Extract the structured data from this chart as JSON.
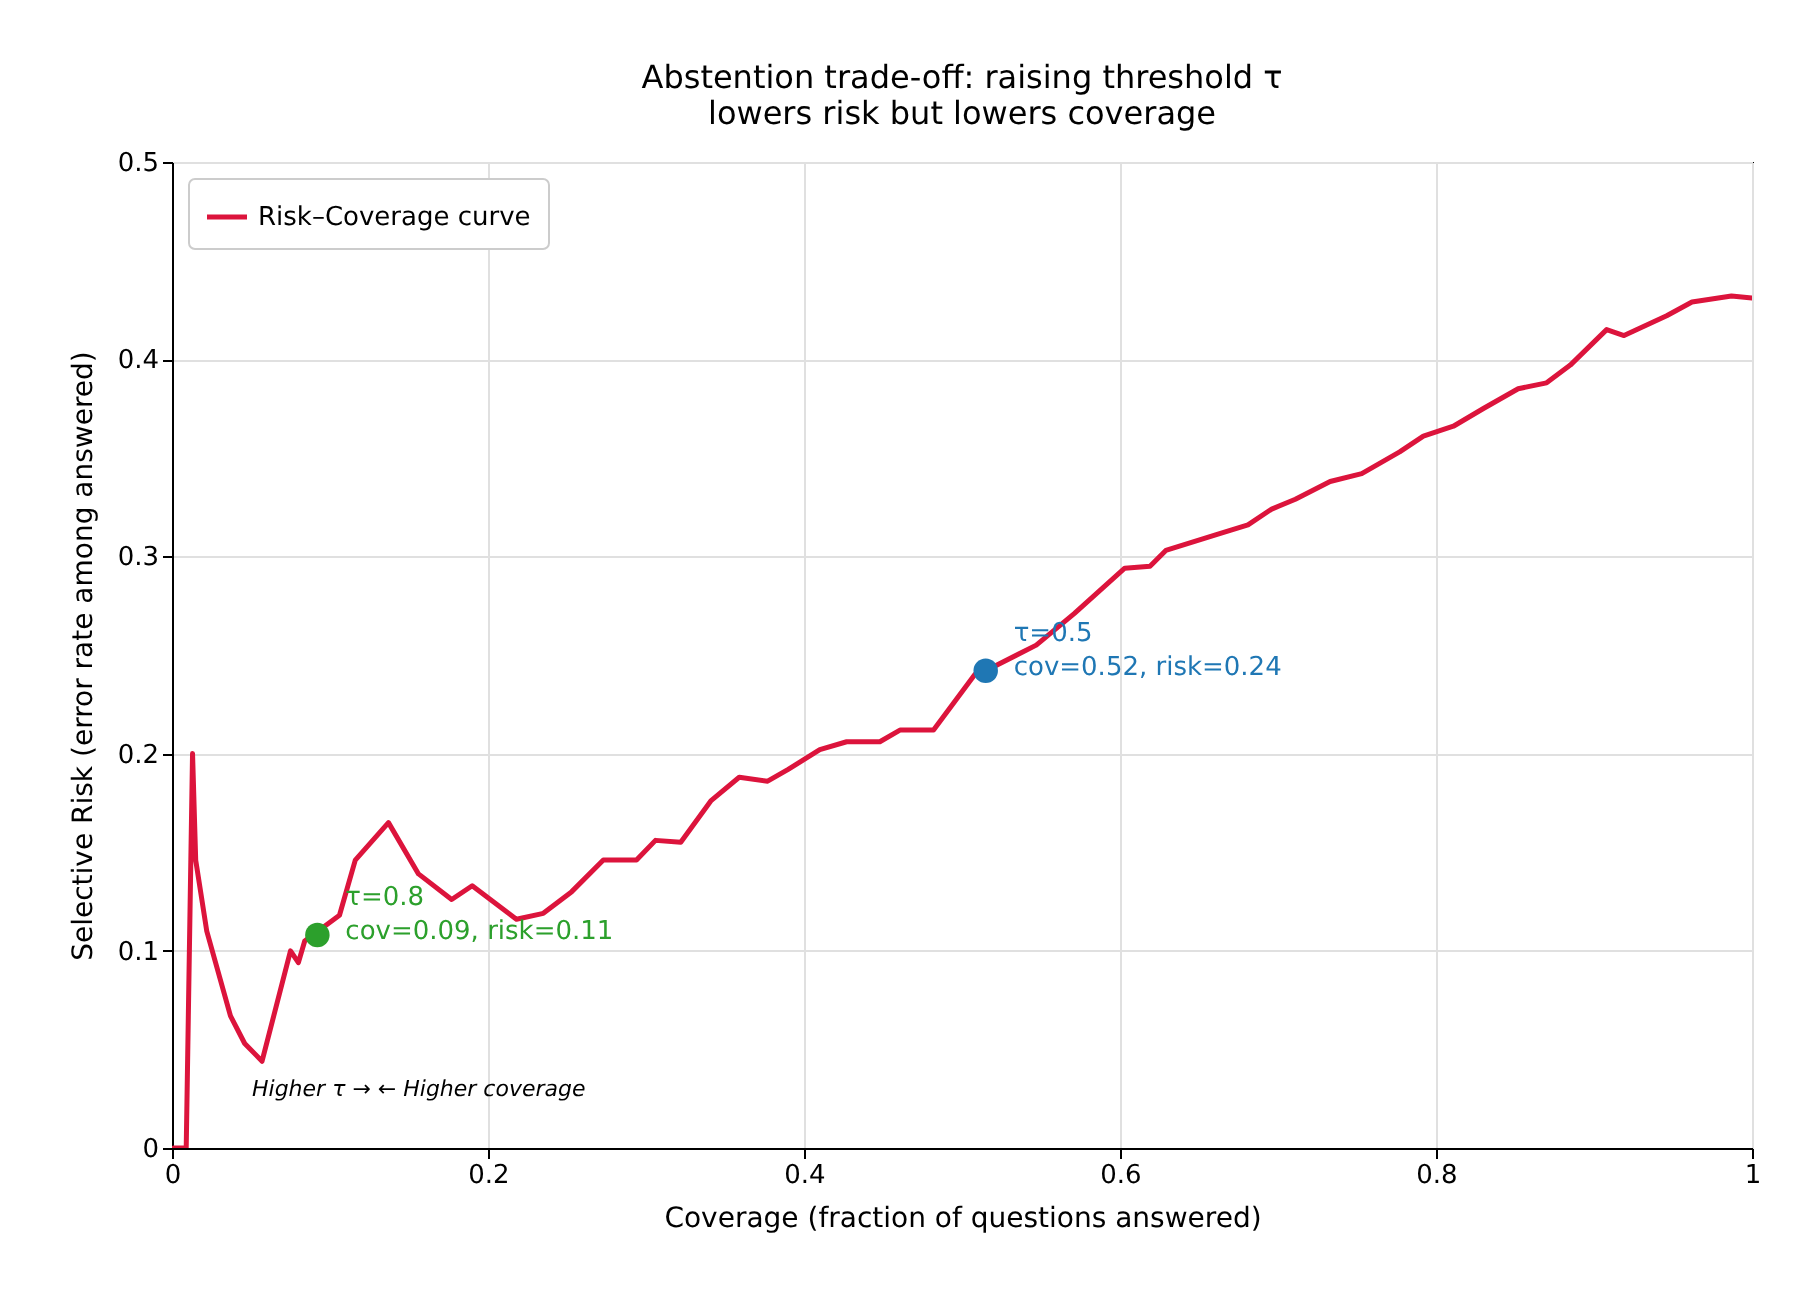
{
  "chart_data": {
    "type": "line",
    "title": "Abstention trade-off: raising threshold τ\nlowers risk but lowers coverage",
    "xlabel": "Coverage  (fraction of questions answered)",
    "ylabel": "Selective Risk  (error rate among answered)",
    "xlim": [
      0,
      1
    ],
    "ylim": [
      0,
      0.5
    ],
    "xticks": [
      0,
      0.2,
      0.4,
      0.6,
      0.8,
      1
    ],
    "yticks": [
      0,
      0.1,
      0.2,
      0.3,
      0.4,
      0.5
    ],
    "grid": true,
    "legend": "top left",
    "series": [
      {
        "name": "Risk–Coverage curve",
        "color": "#dc143c",
        "x": [
          0.001,
          0.009,
          0.013,
          0.015,
          0.022,
          0.037,
          0.046,
          0.057,
          0.075,
          0.08,
          0.084,
          0.106,
          0.116,
          0.137,
          0.156,
          0.177,
          0.19,
          0.218,
          0.235,
          0.253,
          0.273,
          0.294,
          0.306,
          0.322,
          0.341,
          0.359,
          0.377,
          0.39,
          0.41,
          0.427,
          0.448,
          0.461,
          0.482,
          0.508,
          0.515,
          0.547,
          0.571,
          0.603,
          0.619,
          0.629,
          0.661,
          0.681,
          0.696,
          0.711,
          0.733,
          0.753,
          0.777,
          0.792,
          0.811,
          0.83,
          0.852,
          0.87,
          0.885,
          0.908,
          0.919,
          0.946,
          0.962,
          0.987,
          1.0
        ],
        "values": [
          0,
          0,
          0.2,
          0.146,
          0.11,
          0.067,
          0.053,
          0.044,
          0.1,
          0.094,
          0.105,
          0.118,
          0.146,
          0.165,
          0.139,
          0.126,
          0.133,
          0.116,
          0.119,
          0.13,
          0.146,
          0.146,
          0.156,
          0.155,
          0.176,
          0.188,
          0.186,
          0.192,
          0.202,
          0.206,
          0.206,
          0.212,
          0.212,
          0.24,
          0.242,
          0.255,
          0.271,
          0.294,
          0.295,
          0.303,
          0.311,
          0.316,
          0.324,
          0.329,
          0.338,
          0.342,
          0.353,
          0.361,
          0.366,
          0.375,
          0.385,
          0.388,
          0.397,
          0.415,
          0.412,
          0.422,
          0.429,
          0.432,
          0.431
        ]
      },
      {
        "type": "scatter",
        "color": "#2ca02c",
        "x": [
          0.092
        ],
        "values": [
          0.108
        ]
      },
      {
        "type": "scatter",
        "color": "#1f77b4",
        "x": [
          0.515
        ],
        "values": [
          0.242
        ]
      }
    ],
    "annotations": [
      {
        "text": "τ=0.8\ncov=0.09, risk=0.11",
        "x": 0.092,
        "y": 0.108
      },
      {
        "text": "τ=0.5\ncov=0.52, risk=0.24",
        "x": 0.515,
        "y": 0.242
      },
      "Higher τ  →  ← Higher coverage"
    ]
  }
}
